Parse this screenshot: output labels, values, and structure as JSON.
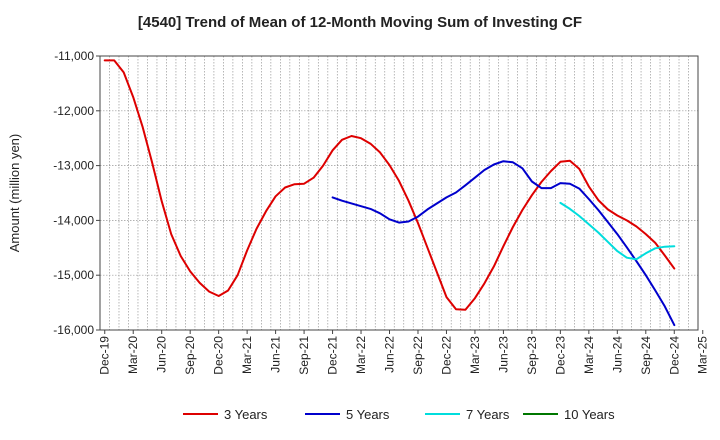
{
  "chart_data": {
    "type": "line",
    "title": "[4540]  Trend of Mean of 12-Month Moving Sum of Investing CF",
    "xlabel": "",
    "ylabel": "Amount (million yen)",
    "ylim": [
      -16000,
      -11000
    ],
    "yticks": [
      -11000,
      -12000,
      -13000,
      -14000,
      -15000,
      -16000
    ],
    "ytick_labels": [
      "-11,000",
      "-12,000",
      "-13,000",
      "-14,000",
      "-15,000",
      "-16,000"
    ],
    "x_tick_labels": [
      "Dec-19",
      "Mar-20",
      "Jun-20",
      "Sep-20",
      "Dec-20",
      "Mar-21",
      "Jun-21",
      "Sep-21",
      "Dec-21",
      "Mar-22",
      "Jun-22",
      "Sep-22",
      "Dec-22",
      "Mar-23",
      "Jun-23",
      "Sep-23",
      "Dec-23",
      "Mar-24",
      "Jun-24",
      "Sep-24",
      "Dec-24",
      "Mar-25"
    ],
    "x_start": "Dec-19",
    "x_months": 63,
    "grid": true,
    "legend_position": "bottom",
    "series": [
      {
        "name": "3 Years",
        "color": "#dd0000",
        "start_index": 0,
        "values": [
          -11080,
          -11080,
          -11300,
          -11750,
          -12300,
          -12950,
          -13650,
          -14250,
          -14650,
          -14930,
          -15140,
          -15300,
          -15380,
          -15280,
          -15000,
          -14550,
          -14150,
          -13830,
          -13560,
          -13400,
          -13340,
          -13330,
          -13220,
          -13000,
          -12720,
          -12530,
          -12460,
          -12500,
          -12600,
          -12760,
          -12990,
          -13280,
          -13640,
          -14050,
          -14500,
          -14950,
          -15400,
          -15620,
          -15630,
          -15420,
          -15150,
          -14840,
          -14470,
          -14120,
          -13810,
          -13540,
          -13300,
          -13100,
          -12930,
          -12910,
          -13060,
          -13380,
          -13630,
          -13800,
          -13910,
          -14000,
          -14110,
          -14250,
          -14410,
          -14640,
          -14880
        ]
      },
      {
        "name": "5 Years",
        "color": "#0000cc",
        "start_index": 24,
        "values": [
          -13580,
          -13640,
          -13690,
          -13740,
          -13790,
          -13870,
          -13980,
          -14040,
          -14020,
          -13930,
          -13800,
          -13690,
          -13580,
          -13490,
          -13360,
          -13220,
          -13080,
          -12980,
          -12920,
          -12940,
          -13050,
          -13290,
          -13410,
          -13410,
          -13320,
          -13330,
          -13420,
          -13610,
          -13810,
          -14030,
          -14250,
          -14490,
          -14740,
          -15000,
          -15280,
          -15570,
          -15910
        ]
      },
      {
        "name": "7 Years",
        "color": "#00dddd",
        "start_index": 48,
        "values": [
          -13680,
          -13790,
          -13920,
          -14070,
          -14220,
          -14390,
          -14560,
          -14680,
          -14710,
          -14600,
          -14510,
          -14480,
          -14470
        ]
      },
      {
        "name": "10 Years",
        "color": "#007700",
        "start_index": 60,
        "values": []
      }
    ]
  }
}
